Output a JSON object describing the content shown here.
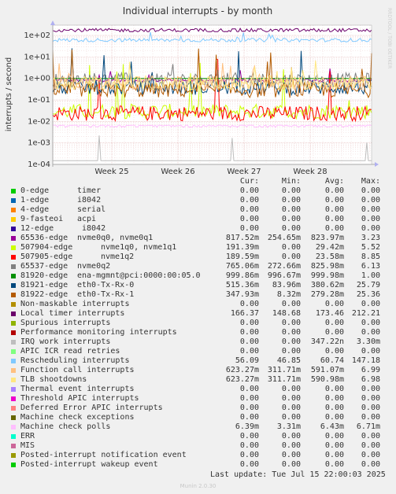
{
  "chart_data": {
    "type": "line",
    "title": "Individual interrupts - by month",
    "ylabel": "interrupts / second",
    "yscale": "log",
    "ylim": [
      0.0001,
      300
    ],
    "y_ticks": [
      "1e-04",
      "1e-03",
      "1e-02",
      "1e-01",
      "1e+00",
      "1e+01",
      "1e+02"
    ],
    "x_ticks": [
      "Week 25",
      "Week 26",
      "Week 27",
      "Week 28"
    ],
    "side_label": "RRDTOOL / TOBI OETIKER",
    "grid": true,
    "series": [
      {
        "name": "0-edge",
        "label": "timer",
        "color": "#00cc00",
        "cur": "0.00",
        "min": "0.00",
        "avg": "0.00",
        "max": "0.00"
      },
      {
        "name": "1-edge",
        "label": "i8042",
        "color": "#0066b3",
        "cur": "0.00",
        "min": "0.00",
        "avg": "0.00",
        "max": "0.00"
      },
      {
        "name": "4-edge",
        "label": "serial",
        "color": "#ff8000",
        "cur": "0.00",
        "min": "0.00",
        "avg": "0.00",
        "max": "0.00"
      },
      {
        "name": "9-fasteoi",
        "label": "acpi",
        "color": "#ffcc00",
        "cur": "0.00",
        "min": "0.00",
        "avg": "0.00",
        "max": "0.00"
      },
      {
        "name": "12-edge",
        "label": "i8042",
        "color": "#330099",
        "cur": "0.00",
        "min": "0.00",
        "avg": "0.00",
        "max": "0.00"
      },
      {
        "name": "65536-edge",
        "label": "nvme0q0, nvme0q1",
        "color": "#990099",
        "cur": "817.52m",
        "min": "254.65m",
        "avg": "823.97m",
        "max": "3.23"
      },
      {
        "name": "507904-edge",
        "label": "nvme1q0, nvme1q1",
        "color": "#ccff00",
        "cur": "191.39m",
        "min": "0.00",
        "avg": "29.42m",
        "max": "5.52"
      },
      {
        "name": "507905-edge",
        "label": "nvme1q2",
        "color": "#ff0000",
        "cur": "189.59m",
        "min": "0.00",
        "avg": "23.58m",
        "max": "8.85"
      },
      {
        "name": "65537-edge",
        "label": "nvme0q2",
        "color": "#808080",
        "cur": "765.06m",
        "min": "272.66m",
        "avg": "825.98m",
        "max": "6.13"
      },
      {
        "name": "81920-edge",
        "label": "ena-mgmnt@pci:0000:00:05.0",
        "color": "#008f00",
        "cur": "999.86m",
        "min": "996.67m",
        "avg": "999.98m",
        "max": "1.00"
      },
      {
        "name": "81921-edge",
        "label": "eth0-Tx-Rx-0",
        "color": "#00487d",
        "cur": "515.36m",
        "min": "83.96m",
        "avg": "380.62m",
        "max": "25.79"
      },
      {
        "name": "81922-edge",
        "label": "eth0-Tx-Rx-1",
        "color": "#b35a00",
        "cur": "347.93m",
        "min": "8.32m",
        "avg": "279.28m",
        "max": "25.36"
      },
      {
        "name": "Non-maskable interrupts",
        "label": "",
        "color": "#b38f00",
        "cur": "0.00",
        "min": "0.00",
        "avg": "0.00",
        "max": "0.00"
      },
      {
        "name": "Local timer interrupts",
        "label": "",
        "color": "#6b006b",
        "cur": "166.37",
        "min": "148.68",
        "avg": "173.46",
        "max": "212.21"
      },
      {
        "name": "Spurious interrupts",
        "label": "",
        "color": "#8fb300",
        "cur": "0.00",
        "min": "0.00",
        "avg": "0.00",
        "max": "0.00"
      },
      {
        "name": "Performance monitoring interrupts",
        "label": "",
        "color": "#b30000",
        "cur": "0.00",
        "min": "0.00",
        "avg": "0.00",
        "max": "0.00"
      },
      {
        "name": "IRQ work interrupts",
        "label": "",
        "color": "#bebebe",
        "cur": "0.00",
        "min": "0.00",
        "avg": "347.22n",
        "max": "3.30m"
      },
      {
        "name": "APIC ICR read retries",
        "label": "",
        "color": "#80ff80",
        "cur": "0.00",
        "min": "0.00",
        "avg": "0.00",
        "max": "0.00"
      },
      {
        "name": "Rescheduling interrupts",
        "label": "",
        "color": "#80c9ff",
        "cur": "56.09",
        "min": "46.85",
        "avg": "60.74",
        "max": "147.18"
      },
      {
        "name": "Function call interrupts",
        "label": "",
        "color": "#ffc080",
        "cur": "623.27m",
        "min": "311.71m",
        "avg": "591.07m",
        "max": "6.99"
      },
      {
        "name": "TLB shootdowns",
        "label": "",
        "color": "#ffe680",
        "cur": "623.27m",
        "min": "311.71m",
        "avg": "590.98m",
        "max": "6.98"
      },
      {
        "name": "Thermal event interrupts",
        "label": "",
        "color": "#aa80ff",
        "cur": "0.00",
        "min": "0.00",
        "avg": "0.00",
        "max": "0.00"
      },
      {
        "name": "Threshold APIC interrupts",
        "label": "",
        "color": "#ee00cc",
        "cur": "0.00",
        "min": "0.00",
        "avg": "0.00",
        "max": "0.00"
      },
      {
        "name": "Deferred Error APIC interrupts",
        "label": "",
        "color": "#ff8080",
        "cur": "0.00",
        "min": "0.00",
        "avg": "0.00",
        "max": "0.00"
      },
      {
        "name": "Machine check exceptions",
        "label": "",
        "color": "#666600",
        "cur": "0.00",
        "min": "0.00",
        "avg": "0.00",
        "max": "0.00"
      },
      {
        "name": "Machine check polls",
        "label": "",
        "color": "#ffbfff",
        "cur": "6.39m",
        "min": "3.31m",
        "avg": "6.43m",
        "max": "6.71m"
      },
      {
        "name": "ERR",
        "label": "",
        "color": "#00ffcc",
        "cur": "0.00",
        "min": "0.00",
        "avg": "0.00",
        "max": "0.00"
      },
      {
        "name": "MIS",
        "label": "",
        "color": "#cc6699",
        "cur": "0.00",
        "min": "0.00",
        "avg": "0.00",
        "max": "0.00"
      },
      {
        "name": "Posted-interrupt notification event",
        "label": "",
        "color": "#999900",
        "cur": "0.00",
        "min": "0.00",
        "avg": "0.00",
        "max": "0.00"
      },
      {
        "name": "Posted-interrupt wakeup event",
        "label": "",
        "color": "#00cc00",
        "cur": "0.00",
        "min": "0.00",
        "avg": "0.00",
        "max": "0.00"
      }
    ]
  },
  "legend_header": {
    "cur": "Cur:",
    "min": "Min:",
    "avg": "Avg:",
    "max": "Max:"
  },
  "footer": {
    "last_update": "Last update: Tue Jul 15 22:00:03 2025",
    "munin_version": "Munin 2.0.30"
  }
}
